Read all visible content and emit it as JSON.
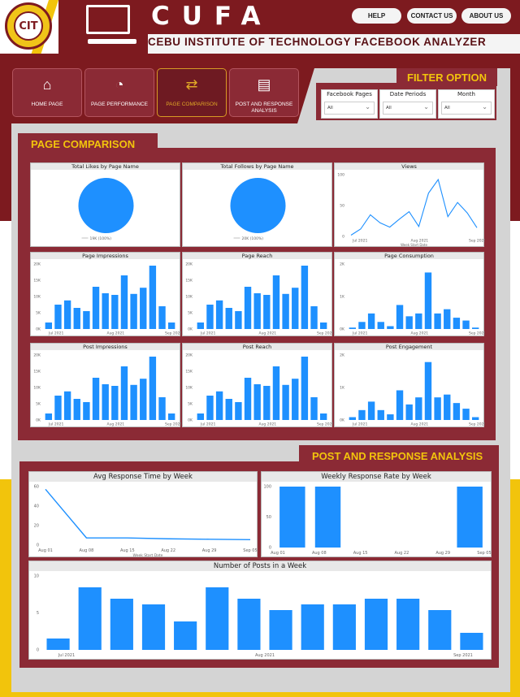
{
  "header": {
    "app_title": "CUFA",
    "subtitle": "CEBU INSTITUTE OF TECHNOLOGY FACEBOOK ANALYZER",
    "seal_text": "CIT",
    "buttons": {
      "help": "HELP",
      "contact": "CONTACT US",
      "about": "ABOUT US"
    }
  },
  "nav": [
    {
      "label": "HOME PAGE",
      "icon": "home-icon",
      "glyph": "⌂"
    },
    {
      "label": "PAGE PERFORMANCE",
      "icon": "gauge-icon",
      "glyph": "◔"
    },
    {
      "label": "PAGE COMPARISON",
      "icon": "compare-icon",
      "glyph": "⇄"
    },
    {
      "label": "POST AND RESPONSE ANALYSIS",
      "icon": "analysis-chart-icon",
      "glyph": "▤"
    }
  ],
  "filter": {
    "title": "FILTER OPTION",
    "fields": [
      {
        "label": "Facebook Pages",
        "value": "All"
      },
      {
        "label": "Date Periods",
        "value": "All"
      },
      {
        "label": "Month",
        "value": "All"
      }
    ]
  },
  "sections": {
    "comparison": "PAGE COMPARISON",
    "post_response": "POST  AND RESPONSE ANALYSIS"
  },
  "colors": {
    "maroon": "#7d1a1f",
    "panel": "#8b2a35",
    "gold": "#f2c40c",
    "bar": "#1e90ff"
  },
  "chart_data": [
    {
      "id": "likes",
      "type": "pie",
      "title": "Total Likes by Page Name",
      "values": [
        19
      ],
      "labels": [
        "19K (100%)"
      ]
    },
    {
      "id": "follows",
      "type": "pie",
      "title": "Total Follows by Page Name",
      "values": [
        20
      ],
      "labels": [
        "20K (100%)"
      ]
    },
    {
      "id": "views",
      "type": "line",
      "title": "Views",
      "xlabel": "Week Start Date",
      "yticks": [
        "0",
        "50",
        "100"
      ],
      "ylim": [
        0,
        100
      ],
      "xticks": [
        "Jul 2021",
        "Aug 2021",
        "Sep 2021"
      ],
      "values": [
        2,
        12,
        35,
        22,
        15,
        28,
        40,
        16,
        70,
        92,
        32,
        55,
        38,
        14
      ]
    },
    {
      "id": "impressions",
      "type": "bar",
      "title": "Page Impressions",
      "yticks": [
        "0K",
        "5K",
        "10K",
        "15K",
        "20K"
      ],
      "ylim": [
        0,
        20
      ],
      "xticks": [
        "Jul 2021",
        "Aug 2021",
        "Sep 2021"
      ],
      "values": [
        2,
        7.5,
        8.8,
        6.5,
        5.5,
        13,
        11,
        10.5,
        16.5,
        10.8,
        12.7,
        19.5,
        7,
        2
      ]
    },
    {
      "id": "reach",
      "type": "bar",
      "title": "Page Reach",
      "yticks": [
        "0K",
        "5K",
        "10K",
        "15K",
        "20K"
      ],
      "ylim": [
        0,
        20
      ],
      "xticks": [
        "Jul 2021",
        "Aug 2021",
        "Sep 2021"
      ],
      "values": [
        2,
        7.5,
        8.8,
        6.5,
        5.5,
        13,
        11,
        10.5,
        16.5,
        10.8,
        12.7,
        19.5,
        7,
        2
      ]
    },
    {
      "id": "consumption",
      "type": "bar",
      "title": "Page Consumption",
      "yticks": [
        "0K",
        "1K",
        "2K"
      ],
      "ylim": [
        0,
        2.3
      ],
      "xticks": [
        "Jul 2021",
        "Aug 2021",
        "Sep 2021"
      ],
      "values": [
        0.05,
        0.25,
        0.55,
        0.25,
        0.1,
        0.85,
        0.45,
        0.55,
        2,
        0.55,
        0.7,
        0.4,
        0.3,
        0.05
      ]
    },
    {
      "id": "post_impressions",
      "type": "bar",
      "title": "Post Impressions",
      "yticks": [
        "0K",
        "5K",
        "10K",
        "15K",
        "20K"
      ],
      "ylim": [
        0,
        20
      ],
      "xticks": [
        "Jul 2021",
        "Aug 2021",
        "Sep 2021"
      ],
      "values": [
        2,
        7.5,
        8.8,
        6.5,
        5.5,
        13,
        11,
        10.5,
        16.5,
        10.8,
        12.7,
        19.5,
        7,
        2
      ]
    },
    {
      "id": "post_reach",
      "type": "bar",
      "title": "Post Reach",
      "yticks": [
        "0K",
        "5K",
        "10K",
        "15K",
        "20K"
      ],
      "ylim": [
        0,
        20
      ],
      "xticks": [
        "Jul 2021",
        "Aug 2021",
        "Sep 2021"
      ],
      "values": [
        2,
        7.5,
        8.8,
        6.5,
        5.5,
        13,
        11,
        10.5,
        16.5,
        10.8,
        12.7,
        19.5,
        7,
        2
      ]
    },
    {
      "id": "post_engagement",
      "type": "bar",
      "title": "Post Engagement",
      "yticks": [
        "0K",
        "1K",
        "2K"
      ],
      "ylim": [
        0,
        2.3
      ],
      "xticks": [
        "Jul 2021",
        "Aug 2021",
        "Sep 2021"
      ],
      "values": [
        0.1,
        0.35,
        0.65,
        0.35,
        0.2,
        1.05,
        0.55,
        0.8,
        2.05,
        0.8,
        0.9,
        0.6,
        0.4,
        0.1
      ]
    },
    {
      "id": "avg_response",
      "type": "line",
      "title": "Avg Response Time by Week",
      "xlabel": "Week Start Date",
      "yticks": [
        "0",
        "20",
        "40",
        "60"
      ],
      "ylim": [
        0,
        65
      ],
      "xticks": [
        "Aug 01",
        "Aug 08",
        "Aug 15",
        "Aug 22",
        "Aug 29",
        "Sep 05"
      ],
      "x": [
        0,
        1,
        2,
        3,
        4,
        5
      ],
      "values": [
        62,
        8,
        8,
        7,
        6.5,
        6
      ]
    },
    {
      "id": "response_rate",
      "type": "bar",
      "title": "Weekly Response Rate by Week",
      "yticks": [
        "0",
        "50",
        "100"
      ],
      "ylim": [
        0,
        100
      ],
      "xticks": [
        "Aug 01",
        "Aug 08",
        "Aug 15",
        "Aug 22",
        "Aug 29",
        "Sep 05"
      ],
      "values": [
        100,
        100,
        0,
        0,
        0,
        100
      ]
    },
    {
      "id": "posts_week",
      "type": "bar",
      "title": "Number of Posts in a Week",
      "yticks": [
        "0",
        "5",
        "10"
      ],
      "ylim": [
        0,
        13
      ],
      "xticks": [
        "Jul 2021",
        "Aug 2021",
        "Sep 2021"
      ],
      "values": [
        2,
        11,
        9,
        8,
        5,
        11,
        9,
        7,
        8,
        8,
        9,
        9,
        7,
        3
      ]
    }
  ]
}
